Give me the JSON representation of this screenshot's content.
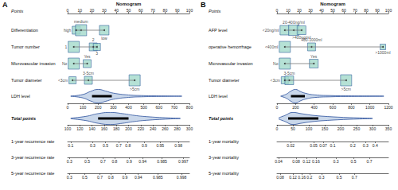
{
  "chart_data": [
    {
      "type": "nomogram",
      "panel": "A",
      "title": "Nomogram",
      "points_axis": {
        "label": "Points",
        "xlim": [
          0,
          100
        ],
        "xticks": [
          0,
          10,
          20,
          30,
          40,
          50,
          60,
          70,
          80,
          90,
          100
        ]
      },
      "variables": [
        {
          "label": "Differentiation",
          "levels": [
            "high",
            "medium",
            "low"
          ],
          "points": [
            7,
            11,
            30
          ],
          "weights": [
            0.6,
            1,
            0.8
          ]
        },
        {
          "label": "Tumor number",
          "levels": [
            "1",
            "2",
            "3"
          ],
          "points": [
            5,
            21,
            24
          ],
          "weights": [
            1,
            0.6,
            0.5
          ]
        },
        {
          "label": "Microvascular invasion",
          "levels": [
            "No",
            "Yes"
          ],
          "points": [
            5,
            16
          ],
          "weights": [
            1,
            0.6
          ]
        },
        {
          "label": "Tumor diameter",
          "levels": [
            "<3cm",
            "3-5cm",
            ">5cm"
          ],
          "points": [
            4,
            17,
            55
          ],
          "weights": [
            0.5,
            0.6,
            1
          ]
        }
      ],
      "continuous": {
        "label": "LDH level",
        "xlim": [
          0,
          800
        ],
        "xticks": [
          0,
          100,
          200,
          300,
          400,
          500,
          600,
          700,
          800
        ],
        "density": {
          "x": [
            20,
            100,
            150,
            200,
            250,
            300,
            400,
            500,
            600,
            750
          ],
          "values": [
            0.02,
            0.25,
            0.7,
            1.0,
            0.75,
            0.45,
            0.18,
            0.08,
            0.04,
            0.01
          ]
        },
        "quartiles": [
          160,
          210,
          290
        ]
      },
      "total_points": {
        "label": "Total points",
        "xlim": [
          100,
          300
        ],
        "xticks": [
          100,
          120,
          140,
          160,
          180,
          200,
          220,
          240,
          260,
          280,
          300
        ],
        "density": {
          "x": [
            105,
            130,
            150,
            170,
            190,
            210,
            230,
            260,
            285
          ],
          "values": [
            0.05,
            0.35,
            0.8,
            1.0,
            0.8,
            0.5,
            0.3,
            0.12,
            0.02
          ]
        },
        "quartiles": [
          150,
          172,
          200
        ]
      },
      "outcomes": [
        {
          "label": "1-year recurrence rate",
          "ticks": [
            {
              "value": 0.1,
              "points": 105
            },
            {
              "value": 0.3,
              "points": 141
            },
            {
              "value": 0.5,
              "points": 162
            },
            {
              "value": 0.7,
              "points": 184
            },
            {
              "value": 0.8,
              "points": 199
            },
            {
              "value": 0.9,
              "points": 226
            },
            {
              "value": 0.95,
              "points": 252
            },
            {
              "value": 0.98,
              "points": 282
            }
          ]
        },
        {
          "label": "3-year recurrence rate",
          "ticks": [
            {
              "value": 0.3,
              "points": 103
            },
            {
              "value": 0.5,
              "points": 132
            },
            {
              "value": 0.7,
              "points": 158
            },
            {
              "value": 0.8,
              "points": 177
            },
            {
              "value": 0.9,
              "points": 201
            },
            {
              "value": 0.94,
              "points": 223
            },
            {
              "value": 0.985,
              "points": 255
            },
            {
              "value": 0.997,
              "points": 290
            }
          ]
        },
        {
          "label": "5-year recurrence rate",
          "ticks": [
            {
              "value": 0.3,
              "points": 103
            },
            {
              "value": 0.5,
              "points": 128
            },
            {
              "value": 0.7,
              "points": 153
            },
            {
              "value": 0.8,
              "points": 171
            },
            {
              "value": 0.9,
              "points": 194
            },
            {
              "value": 0.94,
              "points": 216
            },
            {
              "value": 0.985,
              "points": 248
            },
            {
              "value": 0.998,
              "points": 287
            }
          ]
        }
      ]
    },
    {
      "type": "nomogram",
      "panel": "B",
      "title": "Nomogram",
      "points_axis": {
        "label": "Points",
        "xlim": [
          0,
          100
        ],
        "xticks": [
          0,
          10,
          20,
          30,
          40,
          50,
          60,
          70,
          80,
          90,
          100
        ]
      },
      "variables": [
        {
          "label": "AFP level",
          "levels": [
            "<20ng/ml",
            "20-400ng/ml",
            ">400ng/ml"
          ],
          "points": [
            7,
            15,
            22
          ],
          "weights": [
            0.8,
            0.9,
            0.7
          ]
        },
        {
          "label": "operative hemorrhage",
          "levels": [
            "<400ml",
            "400-1000ml",
            ">1000ml"
          ],
          "points": [
            7,
            31,
            95
          ],
          "weights": [
            1,
            0.6,
            0.3
          ]
        },
        {
          "label": "Microvascular invasion",
          "levels": [
            "No",
            "Yes"
          ],
          "points": [
            7,
            33
          ],
          "weights": [
            1,
            0.7
          ]
        },
        {
          "label": "Tumor diameter",
          "levels": [
            "<3cm",
            "3-5cm",
            ">5cm"
          ],
          "points": [
            7,
            11,
            62
          ],
          "weights": [
            0.5,
            0.7,
            1
          ]
        }
      ],
      "continuous": {
        "label": "LDH level",
        "xlim": [
          0,
          1200
        ],
        "xticks": [
          0,
          200,
          400,
          600,
          800,
          1000,
          1200
        ],
        "density": {
          "x": [
            40,
            100,
            150,
            200,
            250,
            300,
            400,
            600,
            800,
            1000,
            1150
          ],
          "values": [
            0.02,
            0.3,
            0.75,
            1.0,
            0.7,
            0.45,
            0.2,
            0.08,
            0.04,
            0.02,
            0.01
          ]
        },
        "quartiles": [
          150,
          200,
          300
        ]
      },
      "total_points": {
        "label": "Total points",
        "xlim": [
          0,
          350
        ],
        "xticks": [
          0,
          50,
          100,
          150,
          200,
          250,
          300,
          350
        ],
        "density": {
          "x": [
            5,
            25,
            50,
            75,
            100,
            125,
            150,
            200,
            250,
            300
          ],
          "values": [
            0.1,
            0.5,
            1.0,
            0.8,
            0.6,
            0.45,
            0.35,
            0.2,
            0.1,
            0.03
          ]
        },
        "quartiles": [
          35,
          70,
          130
        ]
      },
      "outcomes": [
        {
          "label": "1-year mortality",
          "ticks": [
            {
              "value": 0.02,
              "points": 43
            },
            {
              "value": 0.05,
              "points": 115
            },
            {
              "value": 0.07,
              "points": 145
            },
            {
              "value": 0.1,
              "points": 175
            },
            {
              "value": 0.2,
              "points": 238
            },
            {
              "value": 0.3,
              "points": 278
            },
            {
              "value": 0.4,
              "points": 308
            }
          ]
        },
        {
          "label": "3-year mortality",
          "ticks": [
            {
              "value": 0.04,
              "points": 5
            },
            {
              "value": 0.08,
              "points": 60
            },
            {
              "value": 0.12,
              "points": 93
            },
            {
              "value": 0.16,
              "points": 122
            },
            {
              "value": 0.3,
              "points": 185
            },
            {
              "value": 0.5,
              "points": 240
            },
            {
              "value": 0.7,
              "points": 290
            }
          ]
        },
        {
          "label": "5-year mortality",
          "ticks": [
            {
              "value": 0.08,
              "points": 10
            },
            {
              "value": 0.12,
              "points": 50
            },
            {
              "value": 0.16,
              "points": 78
            },
            {
              "value": 0.2,
              "points": 102
            },
            {
              "value": 0.3,
              "points": 140
            },
            {
              "value": 0.5,
              "points": 195
            },
            {
              "value": 0.7,
              "points": 243
            }
          ]
        }
      ]
    }
  ]
}
